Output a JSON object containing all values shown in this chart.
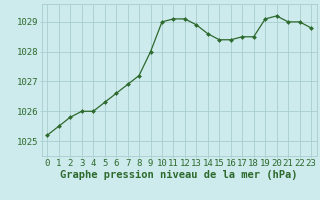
{
  "hours": [
    0,
    1,
    2,
    3,
    4,
    5,
    6,
    7,
    8,
    9,
    10,
    11,
    12,
    13,
    14,
    15,
    16,
    17,
    18,
    19,
    20,
    21,
    22,
    23
  ],
  "pressure": [
    1025.2,
    1025.5,
    1025.8,
    1026.0,
    1026.0,
    1026.3,
    1026.6,
    1026.9,
    1027.2,
    1028.0,
    1029.0,
    1029.1,
    1029.1,
    1028.9,
    1028.6,
    1028.4,
    1028.4,
    1028.5,
    1028.5,
    1029.1,
    1029.2,
    1029.0,
    1029.0,
    1028.8
  ],
  "title": "Graphe pression niveau de la mer (hPa)",
  "line_color": "#2d6a2d",
  "marker_color": "#2d6a2d",
  "bg_color": "#cdeaec",
  "grid_color": "#a8cdd0",
  "text_color": "#2d6a2d",
  "ylim": [
    1024.5,
    1029.6
  ],
  "yticks": [
    1025,
    1026,
    1027,
    1028,
    1029
  ],
  "xlim": [
    -0.5,
    23.5
  ],
  "title_fontsize": 7.5,
  "tick_fontsize": 6.5
}
